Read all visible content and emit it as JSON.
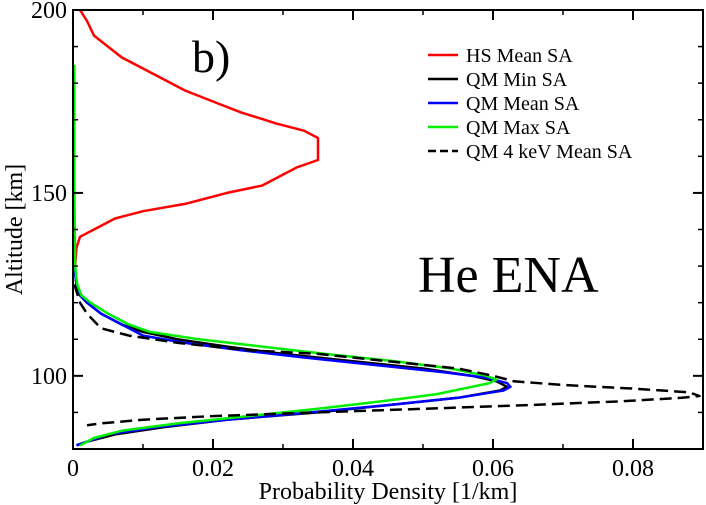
{
  "chart_data": {
    "type": "line",
    "panel_label": "b)",
    "annotation": "He ENA",
    "xlabel": "Probability Density [1/km]",
    "ylabel": "Altitude [km]",
    "xlim": [
      0,
      0.09
    ],
    "ylim": [
      80,
      200
    ],
    "x_ticks": [
      0,
      0.02,
      0.04,
      0.06,
      0.08
    ],
    "x_tick_labels": [
      "0",
      "0.02",
      "0.04",
      "0.06",
      "0.08"
    ],
    "y_ticks": [
      100,
      150,
      200
    ],
    "y_tick_labels": [
      "100",
      "150",
      "200"
    ],
    "legend_position": "top-right",
    "series": [
      {
        "name": "HS Mean SA",
        "color": "#ff0000",
        "dash": "solid",
        "points": [
          [
            0.001,
            200
          ],
          [
            0.002,
            197
          ],
          [
            0.003,
            193
          ],
          [
            0.005,
            190
          ],
          [
            0.007,
            187
          ],
          [
            0.01,
            184
          ],
          [
            0.013,
            181
          ],
          [
            0.016,
            178
          ],
          [
            0.02,
            175
          ],
          [
            0.024,
            172
          ],
          [
            0.029,
            169
          ],
          [
            0.033,
            167
          ],
          [
            0.035,
            165
          ],
          [
            0.035,
            162
          ],
          [
            0.035,
            159
          ],
          [
            0.032,
            157
          ],
          [
            0.03,
            155
          ],
          [
            0.027,
            152
          ],
          [
            0.022,
            150
          ],
          [
            0.016,
            147
          ],
          [
            0.01,
            145
          ],
          [
            0.006,
            143
          ],
          [
            0.003,
            140
          ],
          [
            0.001,
            138
          ],
          [
            0.0005,
            135
          ],
          [
            0.0003,
            130
          ]
        ]
      },
      {
        "name": "QM Min SA",
        "color": "#000000",
        "dash": "solid",
        "points": [
          [
            0.0002,
            130
          ],
          [
            0.0005,
            125
          ],
          [
            0.001,
            122
          ],
          [
            0.002,
            120
          ],
          [
            0.004,
            117
          ],
          [
            0.007,
            114
          ],
          [
            0.01,
            112
          ],
          [
            0.015,
            110
          ],
          [
            0.022,
            108
          ],
          [
            0.03,
            106
          ],
          [
            0.04,
            104
          ],
          [
            0.05,
            102
          ],
          [
            0.057,
            100
          ],
          [
            0.0605,
            98.5
          ],
          [
            0.062,
            97
          ],
          [
            0.061,
            96
          ],
          [
            0.055,
            94
          ],
          [
            0.045,
            92
          ],
          [
            0.035,
            90
          ],
          [
            0.022,
            88
          ],
          [
            0.013,
            86
          ],
          [
            0.006,
            84
          ],
          [
            0.002,
            82
          ],
          [
            0.0005,
            81
          ]
        ]
      },
      {
        "name": "QM Mean SA",
        "color": "#0000ff",
        "dash": "solid",
        "points": [
          [
            0.0002,
            130
          ],
          [
            0.0005,
            125
          ],
          [
            0.001,
            122
          ],
          [
            0.002,
            120
          ],
          [
            0.004,
            117
          ],
          [
            0.007,
            114
          ],
          [
            0.01,
            111
          ],
          [
            0.016,
            109
          ],
          [
            0.024,
            107
          ],
          [
            0.033,
            105
          ],
          [
            0.043,
            103
          ],
          [
            0.053,
            101
          ],
          [
            0.059,
            99.5
          ],
          [
            0.062,
            98
          ],
          [
            0.0625,
            97
          ],
          [
            0.0615,
            96
          ],
          [
            0.055,
            94
          ],
          [
            0.045,
            92
          ],
          [
            0.034,
            90
          ],
          [
            0.022,
            88
          ],
          [
            0.012,
            86
          ],
          [
            0.005,
            84
          ],
          [
            0.002,
            82
          ],
          [
            0.0005,
            81
          ]
        ]
      },
      {
        "name": "QM Max SA",
        "color": "#00ee00",
        "dash": "solid",
        "points": [
          [
            0.0002,
            185
          ],
          [
            0.0002,
            150
          ],
          [
            0.0003,
            130
          ],
          [
            0.0006,
            125
          ],
          [
            0.0012,
            122
          ],
          [
            0.0025,
            120
          ],
          [
            0.005,
            117
          ],
          [
            0.008,
            114
          ],
          [
            0.011,
            112
          ],
          [
            0.018,
            110
          ],
          [
            0.027,
            108
          ],
          [
            0.036,
            106
          ],
          [
            0.046,
            104
          ],
          [
            0.054,
            102
          ],
          [
            0.059,
            100
          ],
          [
            0.0605,
            99
          ],
          [
            0.0595,
            98
          ],
          [
            0.057,
            97
          ],
          [
            0.052,
            95
          ],
          [
            0.044,
            93
          ],
          [
            0.035,
            91
          ],
          [
            0.025,
            89
          ],
          [
            0.015,
            87
          ],
          [
            0.007,
            85
          ],
          [
            0.003,
            83
          ],
          [
            0.001,
            81
          ]
        ]
      },
      {
        "name": "QM 4 keV Mean SA",
        "color": "#000000",
        "dash": "dashed",
        "points": [
          [
            0.0002,
            125
          ],
          [
            0.001,
            120
          ],
          [
            0.002,
            117
          ],
          [
            0.004,
            113
          ],
          [
            0.008,
            111
          ],
          [
            0.015,
            109
          ],
          [
            0.025,
            107
          ],
          [
            0.035,
            106
          ],
          [
            0.045,
            104
          ],
          [
            0.055,
            102
          ],
          [
            0.06,
            100
          ],
          [
            0.063,
            98.5
          ],
          [
            0.07,
            97.5
          ],
          [
            0.08,
            96.5
          ],
          [
            0.088,
            95.5
          ],
          [
            0.0895,
            94.5
          ],
          [
            0.087,
            94
          ],
          [
            0.078,
            93
          ],
          [
            0.065,
            92
          ],
          [
            0.05,
            91
          ],
          [
            0.035,
            90
          ],
          [
            0.02,
            89
          ],
          [
            0.01,
            88
          ],
          [
            0.004,
            87
          ],
          [
            0.002,
            86.5
          ]
        ]
      }
    ]
  }
}
